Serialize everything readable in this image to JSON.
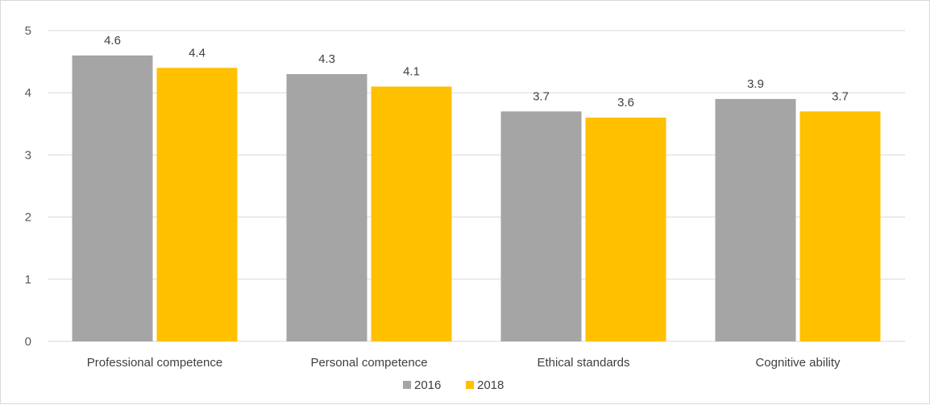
{
  "chart_data": {
    "type": "bar",
    "categories": [
      "Professional competence",
      "Personal competence",
      "Ethical standards",
      "Cognitive ability"
    ],
    "series": [
      {
        "name": "2016",
        "values": [
          4.6,
          4.3,
          3.7,
          3.9
        ],
        "color": "#a5a5a5"
      },
      {
        "name": "2018",
        "values": [
          4.4,
          4.1,
          3.6,
          3.7
        ],
        "color": "#ffc000"
      }
    ],
    "yticks": [
      "0",
      "1",
      "2",
      "3",
      "4",
      "5"
    ],
    "ylim": [
      0,
      5
    ],
    "grid": true,
    "legend_position": "bottom-center"
  }
}
